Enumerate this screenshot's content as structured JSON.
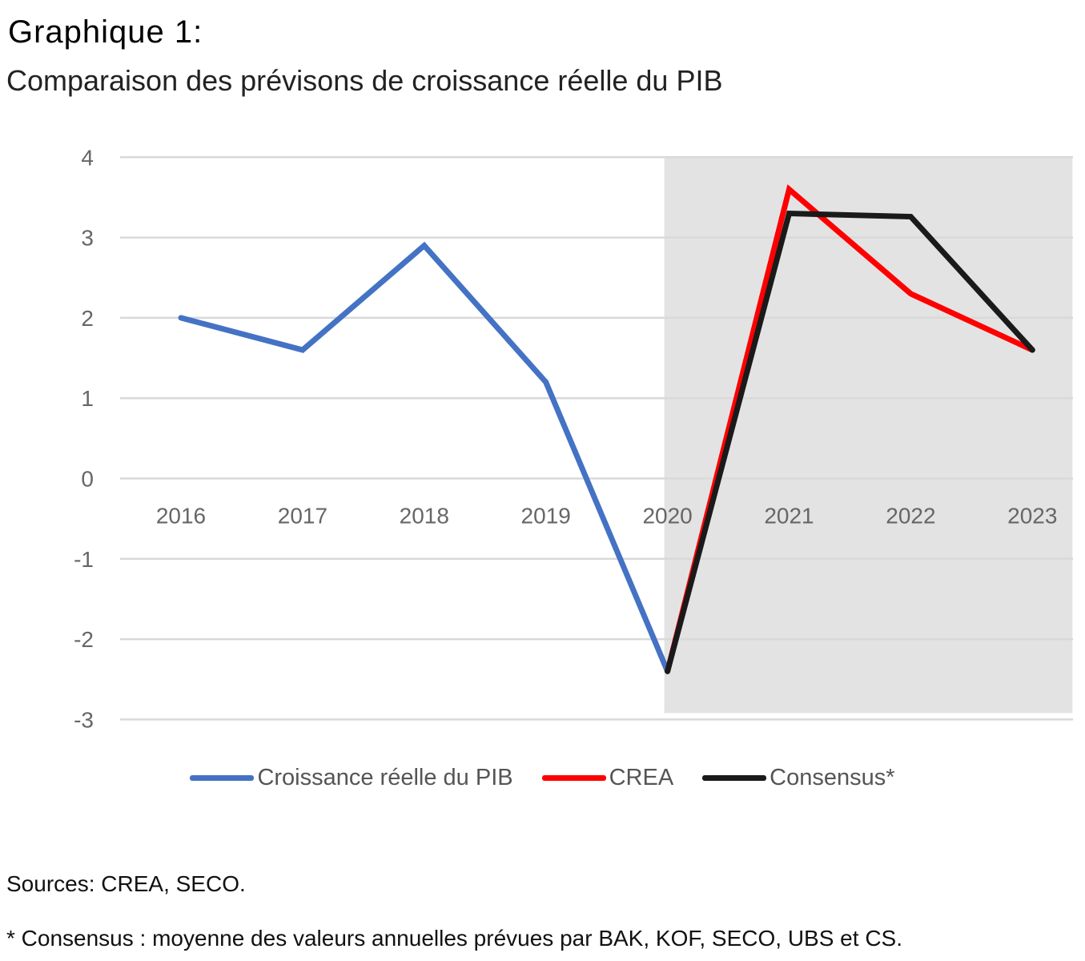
{
  "title": "Graphique 1:",
  "subtitle": "Comparaison des prévisons de croissance réelle du PIB",
  "chart_data": {
    "type": "line",
    "x": [
      "2016",
      "2017",
      "2018",
      "2019",
      "2020",
      "2021",
      "2022",
      "2023"
    ],
    "ylim": [
      -3,
      4
    ],
    "yticks": [
      "4",
      "3",
      "2",
      "1",
      "0",
      "-1",
      "-2",
      "-3"
    ],
    "grid": true,
    "shaded_region": [
      "2020",
      "2023"
    ],
    "legend_position": "bottom",
    "series": [
      {
        "name": "Croissance réelle du PIB",
        "color": "#4472C4",
        "values": [
          2.0,
          1.6,
          2.9,
          1.2,
          -2.4,
          null,
          null,
          null
        ]
      },
      {
        "name": "CREA",
        "color": "#FF0000",
        "values": [
          null,
          null,
          null,
          null,
          -2.4,
          3.6,
          2.3,
          1.6
        ]
      },
      {
        "name": "Consensus*",
        "color": "#1a1a1a",
        "values": [
          null,
          null,
          null,
          null,
          -2.4,
          3.3,
          3.26,
          1.6
        ]
      }
    ]
  },
  "footer": {
    "sources": "Sources: CREA, SECO.",
    "note": "* Consensus : moyenne des valeurs annuelles prévues par BAK, KOF, SECO, UBS et CS."
  }
}
